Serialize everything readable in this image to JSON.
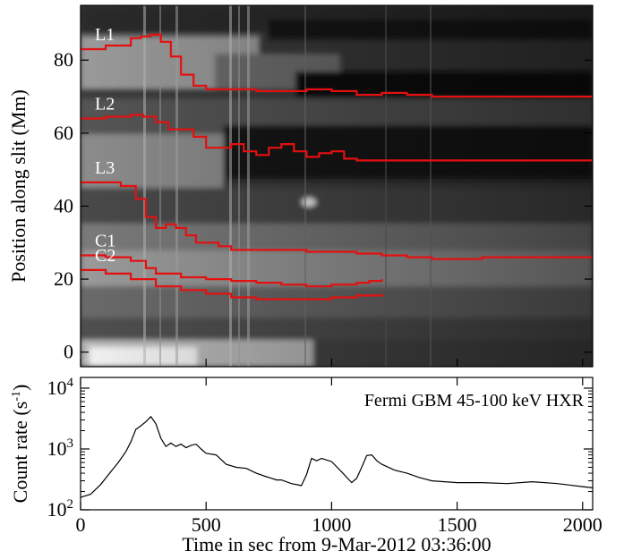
{
  "chart_data": [
    {
      "type": "heatmap",
      "title": "",
      "ylabel": "Position along slit (Mm)",
      "xlim": [
        0,
        2040
      ],
      "ylim": [
        -4,
        95
      ],
      "y_ticks": [
        0,
        20,
        40,
        60,
        80
      ],
      "y_tick_labels": [
        "0",
        "20",
        "40",
        "60",
        "80"
      ],
      "background": "grayscale time-distance map",
      "series": [
        {
          "name": "L1",
          "color": "#e41010",
          "x": [
            0,
            100,
            200,
            240,
            280,
            320,
            360,
            400,
            450,
            500,
            600,
            700,
            800,
            900,
            1000,
            1100,
            1200,
            1300,
            1400,
            1500,
            1600,
            1700,
            1800,
            1900,
            2040
          ],
          "y": [
            83,
            84,
            86,
            86.5,
            87,
            85,
            81,
            76,
            73,
            72,
            72,
            71.5,
            71.5,
            72,
            71.5,
            70.5,
            71,
            70.5,
            70,
            70,
            70,
            70,
            70,
            70,
            70
          ]
        },
        {
          "name": "L2",
          "color": "#e41010",
          "x": [
            0,
            100,
            200,
            250,
            300,
            350,
            400,
            450,
            500,
            550,
            600,
            650,
            700,
            750,
            800,
            850,
            900,
            950,
            1000,
            1050,
            1100,
            1200,
            1300,
            1400,
            1500,
            1600,
            1700,
            1800,
            1900,
            2040
          ],
          "y": [
            64,
            64.5,
            65,
            64.5,
            63,
            61,
            61,
            59,
            56,
            56,
            57,
            55,
            54,
            56,
            57,
            55,
            53.5,
            54.5,
            55,
            53,
            52.5,
            52.5,
            52.5,
            52.5,
            52.5,
            52.5,
            52.5,
            52.5,
            52.5,
            52.5
          ]
        },
        {
          "name": "L3",
          "color": "#e41010",
          "x": [
            0,
            80,
            160,
            220,
            260,
            300,
            340,
            380,
            420,
            460,
            500,
            550,
            600,
            700,
            800,
            900,
            1000,
            1100,
            1200,
            1300,
            1400,
            1500,
            1600,
            1700,
            1800,
            1900,
            2040
          ],
          "y": [
            46.5,
            46.5,
            45.5,
            42,
            37,
            34,
            35,
            34,
            32,
            30,
            30,
            29,
            28,
            28,
            28,
            27.5,
            27.5,
            27,
            26.5,
            26,
            25.5,
            25.5,
            26,
            26,
            26,
            26,
            26
          ]
        },
        {
          "name": "C1",
          "color": "#e41010",
          "x": [
            0,
            100,
            200,
            260,
            300,
            400,
            500,
            600,
            700,
            800,
            900,
            1000,
            1100,
            1150,
            1200
          ],
          "y": [
            26.5,
            26,
            25,
            23,
            21.5,
            20.5,
            20,
            19.5,
            19,
            18.5,
            18,
            18.5,
            19,
            19.5,
            20
          ]
        },
        {
          "name": "C2",
          "color": "#e41010",
          "x": [
            0,
            100,
            200,
            300,
            400,
            500,
            600,
            700,
            800,
            900,
            1000,
            1100,
            1200
          ],
          "y": [
            22.5,
            21.5,
            20,
            18,
            17,
            16,
            15,
            14.5,
            14.5,
            14.5,
            15,
            15.5,
            16
          ]
        }
      ],
      "annotations": [
        "L1",
        "L2",
        "L3",
        "C1",
        "C2"
      ]
    },
    {
      "type": "line",
      "title": "",
      "xlabel": "Time in sec from 9-Mar-2012 03:36:00",
      "ylabel": "Count rate (s",
      "ylabel_sup": "-1",
      "ylabel_close": ")",
      "legend_text": "Fermi GBM 45-100 keV HXR",
      "y_scale": "log",
      "xlim": [
        0,
        2040
      ],
      "ylim": [
        100,
        15000
      ],
      "x_ticks": [
        0,
        500,
        1000,
        1500,
        2000
      ],
      "x_tick_labels": [
        "0",
        "500",
        "1000",
        "1500",
        "2000"
      ],
      "y_tick_labels": [
        {
          "base": "10",
          "exp": "2",
          "value": 100
        },
        {
          "base": "10",
          "exp": "3",
          "value": 1000
        },
        {
          "base": "10",
          "exp": "4",
          "value": 10000
        }
      ],
      "series": [
        {
          "name": "Fermi GBM 45-100 keV HXR",
          "color": "#000000",
          "x": [
            0,
            40,
            80,
            120,
            150,
            180,
            200,
            220,
            240,
            260,
            280,
            300,
            320,
            340,
            360,
            380,
            400,
            420,
            440,
            460,
            480,
            500,
            540,
            580,
            620,
            660,
            700,
            740,
            760,
            780,
            800,
            840,
            880,
            900,
            920,
            940,
            960,
            1000,
            1040,
            1080,
            1100,
            1120,
            1140,
            1160,
            1180,
            1200,
            1250,
            1300,
            1350,
            1400,
            1500,
            1600,
            1700,
            1800,
            1900,
            2000,
            2040
          ],
          "y": [
            160,
            180,
            260,
            420,
            600,
            900,
            1300,
            2100,
            2400,
            2800,
            3400,
            2600,
            1500,
            1100,
            1250,
            1100,
            1200,
            1050,
            1150,
            1200,
            1000,
            850,
            800,
            560,
            500,
            480,
            400,
            350,
            330,
            310,
            310,
            270,
            250,
            380,
            700,
            640,
            700,
            620,
            420,
            280,
            330,
            500,
            780,
            800,
            640,
            560,
            450,
            400,
            340,
            300,
            280,
            280,
            270,
            290,
            270,
            240,
            230
          ]
        }
      ]
    }
  ]
}
